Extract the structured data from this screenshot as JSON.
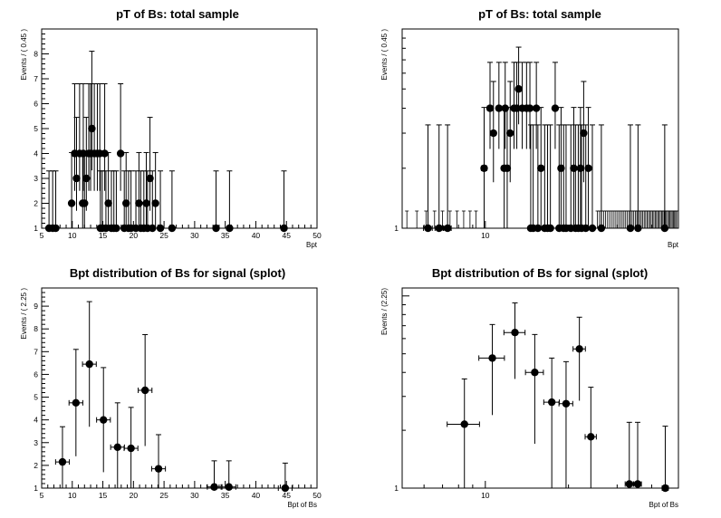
{
  "chart_data": [
    {
      "type": "scatter",
      "title": "pT of Bs: total sample",
      "xlabel": "Bpt",
      "ylabel": "Events / ( 0.45 )",
      "xscale": "linear",
      "yscale": "linear",
      "xlim": [
        5,
        50
      ],
      "ylim": [
        1,
        9
      ],
      "xticks": [
        5,
        10,
        15,
        20,
        25,
        30,
        35,
        40,
        45,
        50
      ],
      "yticks": [
        1,
        2,
        3,
        4,
        5,
        6,
        7,
        8
      ],
      "bin_halfwidth": 0.225,
      "x": [
        6.2,
        6.8,
        7.3,
        9.9,
        10.4,
        10.7,
        11.2,
        11.7,
        11.8,
        12.0,
        12.3,
        12.7,
        13.0,
        13.2,
        13.6,
        14.1,
        14.5,
        14.6,
        14.9,
        15.3,
        15.5,
        15.9,
        16.4,
        16.8,
        17.2,
        17.9,
        18.5,
        18.8,
        19.2,
        19.6,
        20.4,
        20.9,
        21.2,
        21.7,
        22.1,
        22.3,
        22.7,
        23.1,
        23.6,
        24.4,
        26.3,
        33.5,
        35.7,
        44.6
      ],
      "y": [
        1,
        1,
        1,
        2,
        4,
        3,
        4,
        2,
        4,
        2,
        3,
        4,
        4,
        5,
        4,
        4,
        4,
        1,
        1,
        4,
        1,
        2,
        1,
        1,
        1,
        4,
        1,
        2,
        1,
        1,
        1,
        2,
        1,
        1,
        2,
        1,
        3,
        1,
        2,
        1,
        1,
        1,
        1,
        1
      ]
    },
    {
      "type": "scatter",
      "title": "pT of Bs: total sample",
      "xlabel": "Bpt",
      "ylabel": "Events / ( 0.45 )",
      "xscale": "log",
      "yscale": "log",
      "xlim": [
        5,
        50
      ],
      "ylim": [
        1,
        10
      ],
      "xticks": [
        10
      ],
      "yticks": [
        1
      ],
      "bin_halfwidth": 0.225,
      "x": [
        6.2,
        6.8,
        7.3,
        9.9,
        10.4,
        10.7,
        11.2,
        11.7,
        11.8,
        12.0,
        12.3,
        12.7,
        13.0,
        13.2,
        13.6,
        14.1,
        14.5,
        14.6,
        14.9,
        15.3,
        15.5,
        15.9,
        16.4,
        16.8,
        17.2,
        17.9,
        18.5,
        18.8,
        19.2,
        19.6,
        20.4,
        20.9,
        21.2,
        21.7,
        22.1,
        22.3,
        22.7,
        23.1,
        23.6,
        24.4,
        26.3,
        33.5,
        35.7,
        44.6
      ],
      "y": [
        1,
        1,
        1,
        2,
        4,
        3,
        4,
        2,
        4,
        2,
        3,
        4,
        4,
        5,
        4,
        4,
        4,
        1,
        1,
        4,
        1,
        2,
        1,
        1,
        1,
        4,
        1,
        2,
        1,
        1,
        1,
        2,
        1,
        1,
        2,
        1,
        3,
        1,
        2,
        1,
        1,
        1,
        1,
        1
      ]
    },
    {
      "type": "scatter",
      "title": "Bpt distribution of Bs for signal (splot)",
      "xlabel": "Bpt of Bs",
      "ylabel": "Events / ( 2.25 )",
      "xscale": "linear",
      "yscale": "linear",
      "xlim": [
        5,
        50
      ],
      "ylim": [
        1,
        9.8
      ],
      "xticks": [
        5,
        10,
        15,
        20,
        25,
        30,
        35,
        40,
        45,
        50
      ],
      "yticks": [
        1,
        2,
        3,
        4,
        5,
        6,
        7,
        8,
        9
      ],
      "bin_halfwidth": 1.125,
      "x": [
        8.4,
        10.6,
        12.8,
        15.1,
        17.4,
        19.6,
        21.9,
        24.1,
        33.2,
        35.6,
        44.8
      ],
      "y": [
        2.15,
        4.75,
        6.45,
        4.0,
        2.8,
        2.75,
        5.3,
        1.85,
        1.05,
        1.05,
        1.0
      ],
      "err_up": [
        1.55,
        2.35,
        2.75,
        2.3,
        1.95,
        1.8,
        2.45,
        1.5,
        1.15,
        1.15,
        1.1
      ],
      "err_down": [
        1.15,
        2.35,
        2.75,
        2.3,
        1.8,
        1.75,
        2.45,
        0.85,
        0.05,
        0.05,
        0.0
      ]
    },
    {
      "type": "scatter",
      "title": "Bpt distribution of Bs for signal (splot)",
      "xlabel": "Bpt of Bs",
      "ylabel": "Events / (2.25)",
      "xscale": "log",
      "yscale": "log",
      "xlim": [
        5,
        50
      ],
      "ylim": [
        1,
        11
      ],
      "xticks": [
        10
      ],
      "yticks": [
        1
      ],
      "bin_halfwidth": 1.125,
      "x": [
        8.4,
        10.6,
        12.8,
        15.1,
        17.4,
        19.6,
        21.9,
        24.1,
        33.2,
        35.6,
        44.8
      ],
      "y": [
        2.15,
        4.75,
        6.45,
        4.0,
        2.8,
        2.75,
        5.3,
        1.85,
        1.05,
        1.05,
        1.0
      ],
      "err_up": [
        1.55,
        2.35,
        2.75,
        2.3,
        1.95,
        1.8,
        2.45,
        1.5,
        1.15,
        1.15,
        1.1
      ],
      "err_down": [
        1.15,
        2.35,
        2.75,
        2.3,
        1.8,
        1.75,
        2.45,
        0.85,
        0.05,
        0.05,
        0.0
      ]
    }
  ]
}
